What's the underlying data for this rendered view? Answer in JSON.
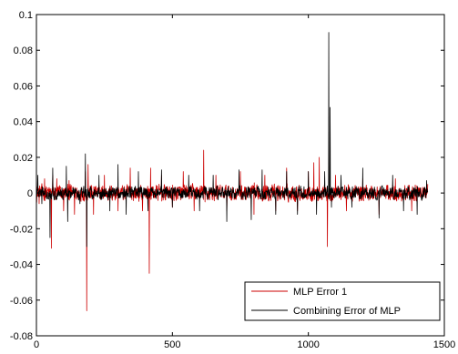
{
  "chart_data": {
    "type": "line",
    "title": "",
    "xlabel": "",
    "ylabel": "",
    "xlim": [
      0,
      1500
    ],
    "ylim": [
      -0.08,
      0.1
    ],
    "x_ticks": [
      0,
      500,
      1000,
      1500
    ],
    "x_tick_labels": [
      "0",
      "500",
      "1000",
      "1500"
    ],
    "y_ticks": [
      -0.08,
      -0.06,
      -0.04,
      -0.02,
      0,
      0.02,
      0.04,
      0.06,
      0.08,
      0.1
    ],
    "y_tick_labels": [
      "-0.08",
      "-0.06",
      "-0.04",
      "-0.02",
      "0",
      "0.02",
      "0.04",
      "0.06",
      "0.08",
      "0.1"
    ],
    "grid": false,
    "legend_position": "bottom-right",
    "sample_count": 1440,
    "series": [
      {
        "name": "MLP Error 1",
        "color": "#cc0000",
        "baseline_noise": 0.004,
        "spikes": [
          {
            "x": 0,
            "y": 0.014
          },
          {
            "x": 10,
            "y": -0.006
          },
          {
            "x": 30,
            "y": 0.008
          },
          {
            "x": 55,
            "y": -0.031
          },
          {
            "x": 60,
            "y": 0.01
          },
          {
            "x": 75,
            "y": 0.008
          },
          {
            "x": 100,
            "y": -0.01
          },
          {
            "x": 120,
            "y": 0.007
          },
          {
            "x": 140,
            "y": -0.012
          },
          {
            "x": 180,
            "y": 0.012
          },
          {
            "x": 185,
            "y": -0.066
          },
          {
            "x": 190,
            "y": 0.016
          },
          {
            "x": 210,
            "y": -0.012
          },
          {
            "x": 250,
            "y": 0.01
          },
          {
            "x": 300,
            "y": -0.01
          },
          {
            "x": 345,
            "y": 0.014
          },
          {
            "x": 390,
            "y": -0.01
          },
          {
            "x": 415,
            "y": -0.045
          },
          {
            "x": 420,
            "y": 0.014
          },
          {
            "x": 460,
            "y": 0.01
          },
          {
            "x": 500,
            "y": -0.008
          },
          {
            "x": 540,
            "y": 0.012
          },
          {
            "x": 580,
            "y": -0.01
          },
          {
            "x": 615,
            "y": 0.024
          },
          {
            "x": 620,
            "y": -0.005
          },
          {
            "x": 660,
            "y": 0.01
          },
          {
            "x": 700,
            "y": -0.01
          },
          {
            "x": 750,
            "y": 0.012
          },
          {
            "x": 800,
            "y": -0.012
          },
          {
            "x": 840,
            "y": 0.01
          },
          {
            "x": 880,
            "y": -0.01
          },
          {
            "x": 920,
            "y": 0.014
          },
          {
            "x": 960,
            "y": -0.01
          },
          {
            "x": 1000,
            "y": 0.012
          },
          {
            "x": 1020,
            "y": 0.017
          },
          {
            "x": 1040,
            "y": 0.02
          },
          {
            "x": 1070,
            "y": -0.03
          },
          {
            "x": 1100,
            "y": 0.01
          },
          {
            "x": 1140,
            "y": -0.01
          },
          {
            "x": 1200,
            "y": 0.008
          },
          {
            "x": 1260,
            "y": -0.012
          },
          {
            "x": 1320,
            "y": 0.008
          },
          {
            "x": 1380,
            "y": -0.01
          },
          {
            "x": 1440,
            "y": 0.005
          }
        ]
      },
      {
        "name": "Combining Error of MLP",
        "color": "#000000",
        "baseline_noise": 0.003,
        "spikes": [
          {
            "x": 5,
            "y": 0.01
          },
          {
            "x": 20,
            "y": -0.006
          },
          {
            "x": 50,
            "y": -0.025
          },
          {
            "x": 60,
            "y": 0.014
          },
          {
            "x": 110,
            "y": 0.015
          },
          {
            "x": 115,
            "y": -0.016
          },
          {
            "x": 160,
            "y": -0.006
          },
          {
            "x": 180,
            "y": 0.022
          },
          {
            "x": 185,
            "y": -0.03
          },
          {
            "x": 230,
            "y": 0.01
          },
          {
            "x": 270,
            "y": -0.01
          },
          {
            "x": 300,
            "y": 0.016
          },
          {
            "x": 330,
            "y": -0.012
          },
          {
            "x": 375,
            "y": 0.012
          },
          {
            "x": 410,
            "y": -0.01
          },
          {
            "x": 460,
            "y": 0.013
          },
          {
            "x": 500,
            "y": -0.008
          },
          {
            "x": 560,
            "y": 0.01
          },
          {
            "x": 600,
            "y": -0.01
          },
          {
            "x": 650,
            "y": 0.01
          },
          {
            "x": 700,
            "y": -0.016
          },
          {
            "x": 745,
            "y": 0.013
          },
          {
            "x": 790,
            "y": -0.015
          },
          {
            "x": 830,
            "y": 0.013
          },
          {
            "x": 880,
            "y": -0.012
          },
          {
            "x": 920,
            "y": 0.012
          },
          {
            "x": 960,
            "y": -0.012
          },
          {
            "x": 1000,
            "y": 0.012
          },
          {
            "x": 1030,
            "y": -0.012
          },
          {
            "x": 1060,
            "y": 0.012
          },
          {
            "x": 1075,
            "y": 0.09
          },
          {
            "x": 1080,
            "y": 0.048
          },
          {
            "x": 1085,
            "y": -0.008
          },
          {
            "x": 1120,
            "y": 0.01
          },
          {
            "x": 1160,
            "y": -0.008
          },
          {
            "x": 1200,
            "y": 0.014
          },
          {
            "x": 1260,
            "y": -0.014
          },
          {
            "x": 1310,
            "y": 0.01
          },
          {
            "x": 1350,
            "y": -0.01
          },
          {
            "x": 1400,
            "y": -0.012
          },
          {
            "x": 1435,
            "y": 0.007
          }
        ]
      }
    ]
  }
}
